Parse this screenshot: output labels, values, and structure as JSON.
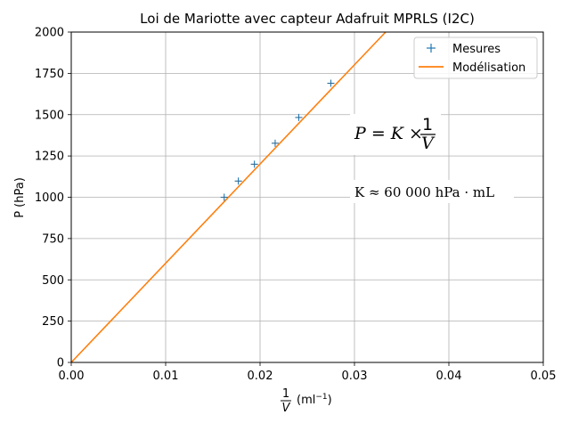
{
  "chart_data": {
    "type": "scatter",
    "title": "Loi de Mariotte avec capteur Adafruit MPRLS (I2C)",
    "xlabel": {
      "fraction_num": "1",
      "fraction_den": "V",
      "unit_prefix": "(ml",
      "unit_exp": "−1",
      "unit_suffix": ")"
    },
    "ylabel": "P (hPa)",
    "xlim": [
      0,
      0.05
    ],
    "ylim": [
      0,
      2000
    ],
    "xticks": [
      0,
      0.01,
      0.02,
      0.03,
      0.04,
      0.05
    ],
    "xtick_labels": [
      "0.00",
      "0.01",
      "0.02",
      "0.03",
      "0.04",
      "0.05"
    ],
    "yticks": [
      0,
      250,
      500,
      750,
      1000,
      1250,
      1500,
      1750,
      2000
    ],
    "ytick_labels": [
      "0",
      "250",
      "500",
      "750",
      "1000",
      "1250",
      "1500",
      "1750",
      "2000"
    ],
    "grid": true,
    "legend_position": "top-right",
    "series": [
      {
        "name": "Mesures",
        "kind": "scatter",
        "marker": "+",
        "color": "#1f77b4",
        "x": [
          0.0162,
          0.0177,
          0.0194,
          0.0216,
          0.0241,
          0.0275
        ],
        "y": [
          1000,
          1098,
          1200,
          1327,
          1483,
          1690
        ]
      },
      {
        "name": "Modélisation",
        "kind": "line",
        "color": "#ff7f0e",
        "x": [
          0,
          0.0333
        ],
        "y": [
          0,
          2000
        ]
      }
    ],
    "annotations": [
      {
        "id": "equation",
        "lhs": "P = K × ",
        "num": "1",
        "den": "V"
      },
      {
        "id": "constant",
        "text": "K ≈ 60 000 hPa · mL"
      }
    ]
  }
}
